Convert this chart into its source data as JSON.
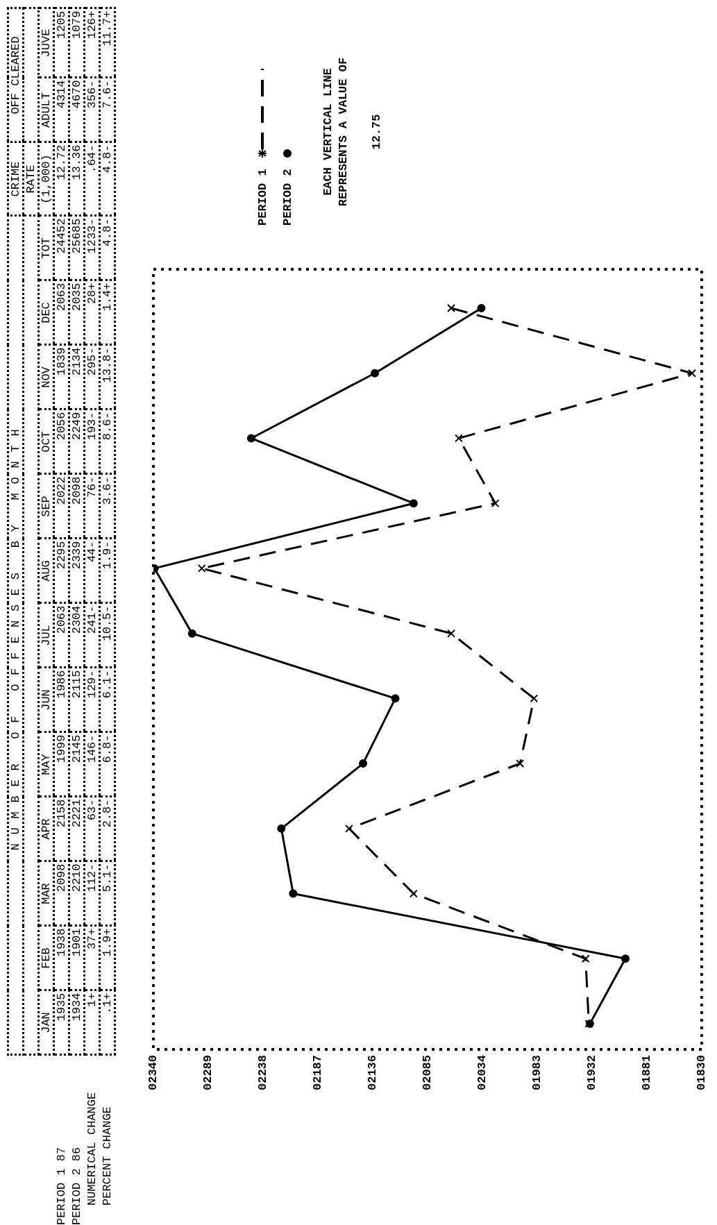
{
  "chart_data": {
    "type": "line",
    "title": "NUMBER OF OFFENSES BY MONTH",
    "orientation": "horizontal",
    "categories": [
      "DEC",
      "NOV",
      "OCT",
      "SEP",
      "AUG",
      "JUL",
      "JUN",
      "MAY",
      "APR",
      "MAR",
      "FEB",
      "JAN"
    ],
    "series": [
      {
        "name": "PERIOD 1",
        "color": "#000000",
        "line_style": "dashed",
        "marker": "cross",
        "values": [
          2063,
          1839,
          2056,
          2022,
          2295,
          2063,
          1986,
          1999,
          2158,
          2098,
          1938,
          1935
        ]
      },
      {
        "name": "PERIOD 2",
        "color": "#000000",
        "line_style": "solid",
        "marker": "circle",
        "values": [
          2035,
          2134,
          2249,
          2098,
          2339,
          2304,
          2115,
          2145,
          2221,
          2210,
          1901,
          1934
        ]
      }
    ],
    "xlim": [
      2340,
      1830
    ],
    "xticks": [
      {
        "value": 1830,
        "label": "01830"
      },
      {
        "value": 1881,
        "label": "01881"
      },
      {
        "value": 1932,
        "label": "01932"
      },
      {
        "value": 1983,
        "label": "01983"
      },
      {
        "value": 2034,
        "label": "02034"
      },
      {
        "value": 2085,
        "label": "02085"
      },
      {
        "value": 2136,
        "label": "02136"
      },
      {
        "value": 2187,
        "label": "02187"
      },
      {
        "value": 2238,
        "label": "02238"
      },
      {
        "value": 2289,
        "label": "02289"
      },
      {
        "value": 2340,
        "label": "02340"
      }
    ],
    "grid": false,
    "legend": "top left",
    "tick_labels": "x",
    "data_labels": true,
    "annotations": [
      "CRIME",
      "OFF CLEARED",
      "TOT",
      "RATE",
      "(1,000)",
      "ADULT",
      "JUVE",
      "87",
      "86",
      "NUMERICAL CHANGE",
      "PERCENT CHANGE",
      "24452",
      "12.72",
      "4314",
      "1205",
      "25685",
      "13.36",
      "4670",
      "1079",
      "1+",
      "37+",
      "112-",
      "63-",
      "146-",
      "129-",
      "241-",
      "44-",
      "76-",
      "193-",
      "295-",
      "28+",
      "1233-",
      ".64-",
      "356-",
      "126+",
      ".1+",
      "1.9+",
      "5.1-",
      "2.8-",
      "6.8-",
      "6.1-",
      "10.5-",
      "1.9-",
      "3.6-",
      "8.6-",
      "13.8-",
      "1.4+",
      "4.8-",
      "4.8-",
      "7.6-",
      "11.7+",
      "EACH VERTICAL LINE REPRESENTS A VALUE OF",
      "12.75"
    ]
  }
}
